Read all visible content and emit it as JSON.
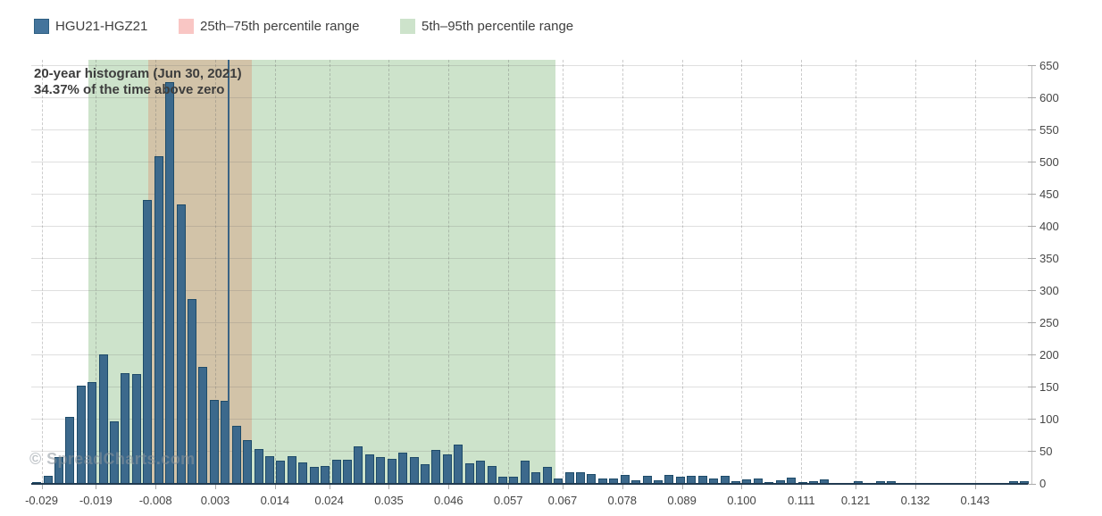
{
  "legend": {
    "series": {
      "label": "HGU21-HGZ21",
      "color": "#44749C",
      "border": "#2D5F82"
    },
    "p25_75": {
      "label": "25th–75th percentile range",
      "color": "#F9C6C4",
      "border": "#F9C6C4"
    },
    "p5_95": {
      "label": "5th–95th percentile range",
      "color": "#CDE3CB",
      "border": "#CDE3CB"
    }
  },
  "title": {
    "line1": "20-year histogram (Jun 30, 2021)",
    "line2": "34.37% of the time above zero"
  },
  "watermark": "© SpreadCharts.com",
  "colors": {
    "bar_fill": "#3C698C",
    "bar_border": "#1E4B69",
    "band_green": "#CDE3CB",
    "band_overlap_tan": "#D2C3A8",
    "marker_line": "#3A6383",
    "x_axis_line": "#203A50"
  },
  "chart_data": {
    "type": "bar",
    "title": "20-year histogram (Jun 30, 2021)",
    "subtitle": "34.37% of the time above zero",
    "series_name": "HGU21-HGZ21",
    "grid": true,
    "legend_position": "top-left",
    "y_axis_side": "right",
    "ylim": [
      0,
      650
    ],
    "xlim": [
      -0.0309,
      0.1534
    ],
    "y_ticks": [
      0,
      50,
      100,
      150,
      200,
      250,
      300,
      350,
      400,
      450,
      500,
      550,
      600,
      650
    ],
    "x_tick_values": [
      -0.029,
      -0.019,
      -0.008,
      0.003,
      0.014,
      0.024,
      0.035,
      0.046,
      0.057,
      0.067,
      0.078,
      0.089,
      0.1,
      0.111,
      0.121,
      0.132,
      0.143
    ],
    "x_tick_labels": [
      "-0.029",
      "-0.019",
      "-0.008",
      "0.003",
      "0.014",
      "0.024",
      "0.035",
      "0.046",
      "0.057",
      "0.067",
      "0.078",
      "0.089",
      "0.100",
      "0.111",
      "0.121",
      "0.132",
      "0.143"
    ],
    "bin_start_center": -0.0299,
    "bin_step": 0.002045,
    "values": [
      2,
      12,
      41,
      104,
      152,
      158,
      201,
      97,
      171,
      170,
      441,
      509,
      623,
      434,
      286,
      181,
      130,
      129,
      89,
      67,
      53,
      43,
      35,
      42,
      33,
      26,
      27,
      37,
      37,
      58,
      45,
      41,
      38,
      48,
      41,
      30,
      52,
      45,
      60,
      31,
      35,
      27,
      11,
      11,
      35,
      18,
      26,
      7,
      18,
      18,
      15,
      8,
      8,
      13,
      5,
      12,
      5,
      13,
      10,
      12,
      12,
      7,
      12,
      3,
      6,
      8,
      2,
      5,
      9,
      2,
      3,
      6,
      0,
      0,
      3,
      0,
      3,
      3,
      0,
      0,
      0,
      0,
      0,
      0,
      0,
      0,
      0,
      0,
      3,
      3
    ],
    "percentile_5": -0.0204,
    "percentile_95": 0.0657,
    "percentile_25": -0.0094,
    "percentile_75": 0.0098,
    "marker_value": 0.0055
  }
}
